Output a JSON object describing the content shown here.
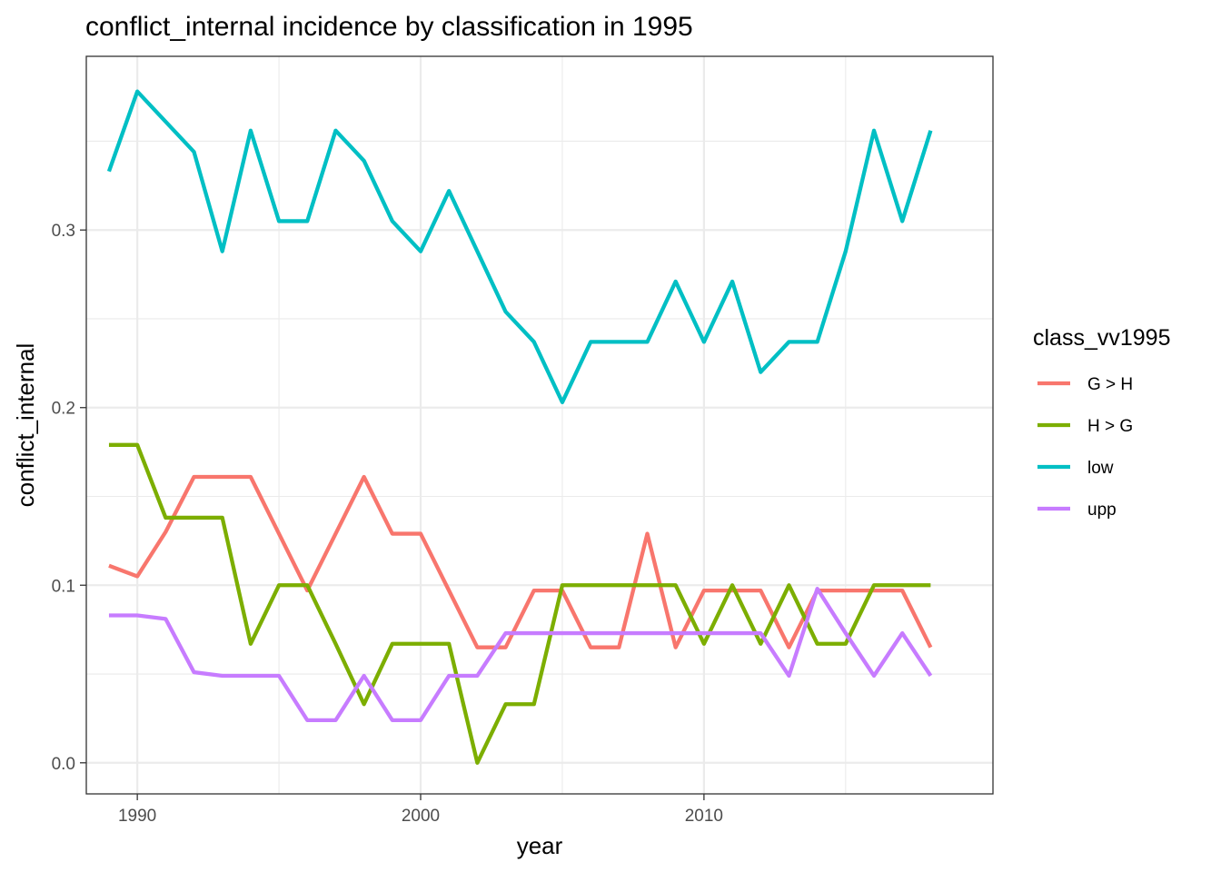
{
  "chart_data": {
    "type": "line",
    "title": "conflict_internal  incidence by classification in 1995",
    "xlabel": "year",
    "ylabel": "conflict_internal",
    "xlim": [
      1988.2,
      2020.2
    ],
    "ylim": [
      -0.0175,
      0.3978
    ],
    "x_major_ticks": [
      1990,
      2000,
      2010
    ],
    "x_minor_ticks": [
      1995,
      2005,
      2015
    ],
    "y_major_ticks": [
      0.0,
      0.1,
      0.2,
      0.3
    ],
    "y_minor_ticks": [
      0.05,
      0.15,
      0.25,
      0.35
    ],
    "x_tick_labels": [
      "1990",
      "2000",
      "2010"
    ],
    "y_tick_labels": [
      "0.0",
      "0.1",
      "0.2",
      "0.3"
    ],
    "grid": true,
    "legend": {
      "title": "class_vv1995",
      "placement": "right"
    },
    "x": [
      1989,
      1990,
      1991,
      1992,
      1993,
      1994,
      1995,
      1996,
      1997,
      1998,
      1999,
      2000,
      2001,
      2002,
      2003,
      2004,
      2005,
      2006,
      2007,
      2008,
      2009,
      2010,
      2011,
      2012,
      2013,
      2014,
      2015,
      2016,
      2017,
      2018
    ],
    "series": [
      {
        "name": "G > H",
        "color": "#F8766D",
        "values": [
          0.111,
          0.105,
          0.13,
          0.161,
          0.161,
          0.161,
          0.129,
          0.097,
          0.129,
          0.161,
          0.129,
          0.129,
          0.097,
          0.065,
          0.065,
          0.097,
          0.097,
          0.065,
          0.065,
          0.129,
          0.065,
          0.097,
          0.097,
          0.097,
          0.065,
          0.097,
          0.097,
          0.097,
          0.097,
          0.065
        ]
      },
      {
        "name": "H > G",
        "color": "#7CAE00",
        "values": [
          0.179,
          0.179,
          0.138,
          0.138,
          0.138,
          0.067,
          0.1,
          0.1,
          0.067,
          0.033,
          0.067,
          0.067,
          0.067,
          0.0,
          0.033,
          0.033,
          0.1,
          0.1,
          0.1,
          0.1,
          0.1,
          0.067,
          0.1,
          0.067,
          0.1,
          0.067,
          0.067,
          0.1,
          0.1,
          0.1
        ]
      },
      {
        "name": "low",
        "color": "#00BFC4",
        "values": [
          0.333,
          0.378,
          0.361,
          0.344,
          0.288,
          0.356,
          0.305,
          0.305,
          0.356,
          0.339,
          0.305,
          0.288,
          0.322,
          0.288,
          0.254,
          0.237,
          0.203,
          0.237,
          0.237,
          0.237,
          0.271,
          0.237,
          0.271,
          0.22,
          0.237,
          0.237,
          0.288,
          0.356,
          0.305,
          0.356
        ]
      },
      {
        "name": "upp",
        "color": "#C77CFF",
        "values": [
          0.083,
          0.083,
          0.081,
          0.051,
          0.049,
          0.049,
          0.049,
          0.024,
          0.024,
          0.049,
          0.024,
          0.024,
          0.049,
          0.049,
          0.073,
          0.073,
          0.073,
          0.073,
          0.073,
          0.073,
          0.073,
          0.073,
          0.073,
          0.073,
          0.049,
          0.098,
          0.073,
          0.049,
          0.073,
          0.049
        ]
      }
    ]
  }
}
